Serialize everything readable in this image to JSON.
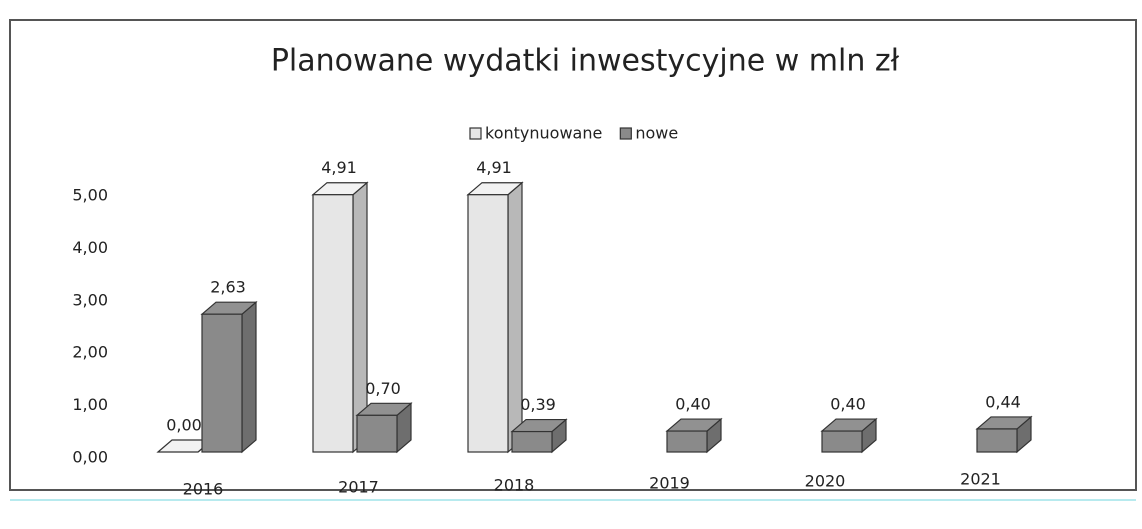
{
  "chart_data": {
    "type": "bar3d",
    "title": "Planowane wydatki inwestycyjne w mln zł",
    "categories": [
      "2016",
      "2017",
      "2018",
      "2019",
      "2020",
      "2021"
    ],
    "series": [
      {
        "name": "kontynuowane",
        "color": "#e6e6e6",
        "values": [
          0,
          4.91,
          4.91,
          null,
          null,
          null
        ],
        "value_labels": [
          "0,00",
          "4,91",
          "4,91",
          null,
          null,
          null
        ]
      },
      {
        "name": "nowe",
        "color": "#8a8a8a",
        "values": [
          2.63,
          0.7,
          0.39,
          0.4,
          0.4,
          0.44
        ],
        "value_labels": [
          "2,63",
          "0,70",
          "0,39",
          "0,40",
          "0,40",
          "0,44"
        ]
      }
    ],
    "ylim": [
      0,
      5
    ],
    "yticks": [
      {
        "value": 0,
        "label": "0,00"
      },
      {
        "value": 1,
        "label": "1,00"
      },
      {
        "value": 2,
        "label": "2,00"
      },
      {
        "value": 3,
        "label": "3,00"
      },
      {
        "value": 4,
        "label": "4,00"
      },
      {
        "value": 5,
        "label": "5,00"
      }
    ],
    "legend": "top"
  }
}
